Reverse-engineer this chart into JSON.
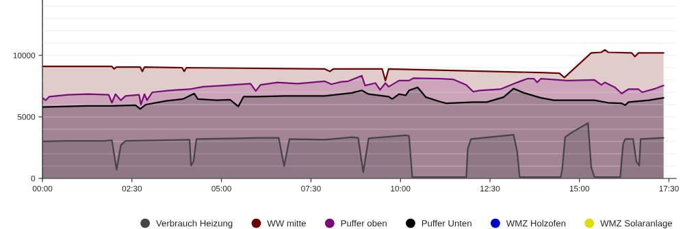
{
  "chart_data": {
    "type": "area",
    "xlim": [
      0,
      17.7
    ],
    "xticks": [
      {
        "value": 0,
        "label": "00:00"
      },
      {
        "value": 2.5,
        "label": "02:30"
      },
      {
        "value": 5,
        "label": "05:00"
      },
      {
        "value": 7.5,
        "label": "07:30"
      },
      {
        "value": 10,
        "label": "10:00"
      },
      {
        "value": 12.5,
        "label": "12:30"
      },
      {
        "value": 15,
        "label": "15:00"
      },
      {
        "value": 17.5,
        "label": "17:30"
      }
    ],
    "ylim": [
      0,
      14500
    ],
    "yticks": [
      0,
      {
        "value": 1000,
        "label": null
      },
      {
        "value": 2000,
        "label": null
      },
      {
        "value": 3000,
        "label": null
      },
      {
        "value": 4000,
        "label": null
      },
      5000,
      {
        "value": 6000,
        "label": null
      },
      {
        "value": 7000,
        "label": null
      },
      {
        "value": 8000,
        "label": null
      },
      {
        "value": 9000,
        "label": null
      },
      10000,
      {
        "value": 11000,
        "label": null
      },
      {
        "value": 12000,
        "label": null
      },
      {
        "value": 13000,
        "label": null
      },
      {
        "value": 14000,
        "label": null
      }
    ],
    "grid": "y",
    "legend": "bottom",
    "marker": "none",
    "line_style": "solid",
    "series": [
      {
        "name": "Verbrauch Heizung",
        "color": "#444444",
        "x": [
          0,
          0.72,
          1.75,
          1.94,
          2.07,
          2.19,
          2.32,
          3.36,
          4.11,
          4.15,
          4.22,
          4.3,
          5.43,
          6.0,
          6.6,
          6.75,
          6.9,
          7.88,
          8.64,
          8.82,
          8.96,
          9.11,
          10.15,
          10.24,
          10.33,
          11.84,
          11.88,
          11.97,
          13.16,
          13.26,
          13.33,
          14.48,
          14.52,
          14.6,
          14.77,
          15.24,
          15.33,
          15.42,
          16.14,
          16.22,
          16.28,
          16.5,
          16.59,
          16.67,
          16.71,
          17.35
        ],
        "values": [
          3000,
          3050,
          3050,
          3100,
          700,
          2700,
          3050,
          3100,
          3150,
          1050,
          1400,
          3200,
          3250,
          3300,
          3300,
          1000,
          3200,
          3150,
          3350,
          3300,
          500,
          3250,
          3500,
          3450,
          100,
          100,
          2400,
          3200,
          3550,
          2200,
          100,
          100,
          800,
          3350,
          3700,
          4500,
          900,
          100,
          100,
          2800,
          3200,
          3200,
          1350,
          1050,
          3200,
          3300
        ]
      },
      {
        "name": "WW mitte",
        "color": "#6b0000",
        "x": [
          0,
          1.94,
          2.0,
          2.06,
          2.73,
          2.79,
          2.85,
          3.9,
          3.96,
          4.02,
          7.88,
          8.03,
          8.13,
          9.49,
          9.58,
          9.67,
          13.92,
          14.44,
          14.58,
          15.33,
          15.61,
          15.71,
          15.8,
          16.46,
          16.55,
          16.65,
          17.35
        ],
        "values": [
          9100,
          9100,
          8900,
          9050,
          9050,
          8700,
          9050,
          9000,
          8700,
          9000,
          8900,
          8700,
          8900,
          8900,
          7950,
          8900,
          8600,
          8550,
          8200,
          10200,
          10250,
          10450,
          10250,
          10200,
          9900,
          10200,
          10200
        ]
      },
      {
        "name": "Puffer oben",
        "color": "#7a0a7a",
        "x": [
          0,
          0.09,
          0.19,
          0.72,
          1.28,
          1.85,
          1.94,
          2.04,
          2.19,
          2.32,
          2.7,
          2.75,
          2.85,
          2.92,
          3.07,
          3.55,
          4.11,
          4.49,
          5.05,
          5.53,
          5.81,
          5.96,
          6.09,
          6.56,
          7.13,
          7.88,
          8.07,
          8.35,
          8.54,
          8.92,
          9.01,
          9.3,
          9.43,
          9.58,
          9.67,
          9.96,
          10.24,
          10.37,
          11.09,
          11.47,
          11.84,
          12.03,
          12.22,
          12.79,
          13.26,
          13.54,
          13.73,
          13.82,
          13.92,
          14.67,
          15.42,
          15.61,
          15.71,
          15.99,
          16.18,
          16.37,
          16.65,
          16.75,
          17.12,
          17.35
        ],
        "values": [
          6550,
          6350,
          6650,
          6800,
          6850,
          6800,
          6150,
          6850,
          6350,
          6700,
          6800,
          6000,
          6850,
          6350,
          7000,
          7150,
          7250,
          7450,
          7550,
          7650,
          7700,
          7100,
          7600,
          7800,
          7700,
          7900,
          7650,
          7850,
          7900,
          8350,
          7550,
          7750,
          7200,
          7750,
          7450,
          7950,
          7950,
          8150,
          8100,
          8050,
          7600,
          7050,
          7150,
          7250,
          7800,
          8100,
          8100,
          7800,
          8100,
          7950,
          8000,
          7600,
          7800,
          7400,
          6900,
          7250,
          7250,
          7000,
          7300,
          7550
        ]
      },
      {
        "name": "Puffer Unten",
        "color": "#000000",
        "x": [
          0,
          0.72,
          1.28,
          1.94,
          2.6,
          2.73,
          2.89,
          3.45,
          3.92,
          4.24,
          4.34,
          4.87,
          5.24,
          5.47,
          5.62,
          6.0,
          6.75,
          7.88,
          8.64,
          8.92,
          9.11,
          9.67,
          9.77,
          9.96,
          10.15,
          10.24,
          10.48,
          10.71,
          11.09,
          11.28,
          12.03,
          12.41,
          12.88,
          13.16,
          13.45,
          13.92,
          14.29,
          15.42,
          15.8,
          16.18,
          16.28,
          16.37,
          16.94,
          17.35
        ],
        "values": [
          5800,
          5850,
          5900,
          5900,
          5950,
          5650,
          6000,
          6300,
          6450,
          6900,
          6450,
          6350,
          6400,
          5850,
          6650,
          6650,
          6700,
          6700,
          6950,
          7150,
          6850,
          6650,
          6450,
          6850,
          6750,
          7150,
          7400,
          6600,
          6250,
          6100,
          6200,
          6200,
          6600,
          7300,
          6950,
          6550,
          6350,
          6350,
          6150,
          6100,
          5950,
          6200,
          6350,
          6550
        ]
      },
      {
        "name": "WMZ Holzofen",
        "color": "#0000cc"
      },
      {
        "name": "WMZ Solaranlage",
        "color": "#dddd00"
      }
    ]
  }
}
